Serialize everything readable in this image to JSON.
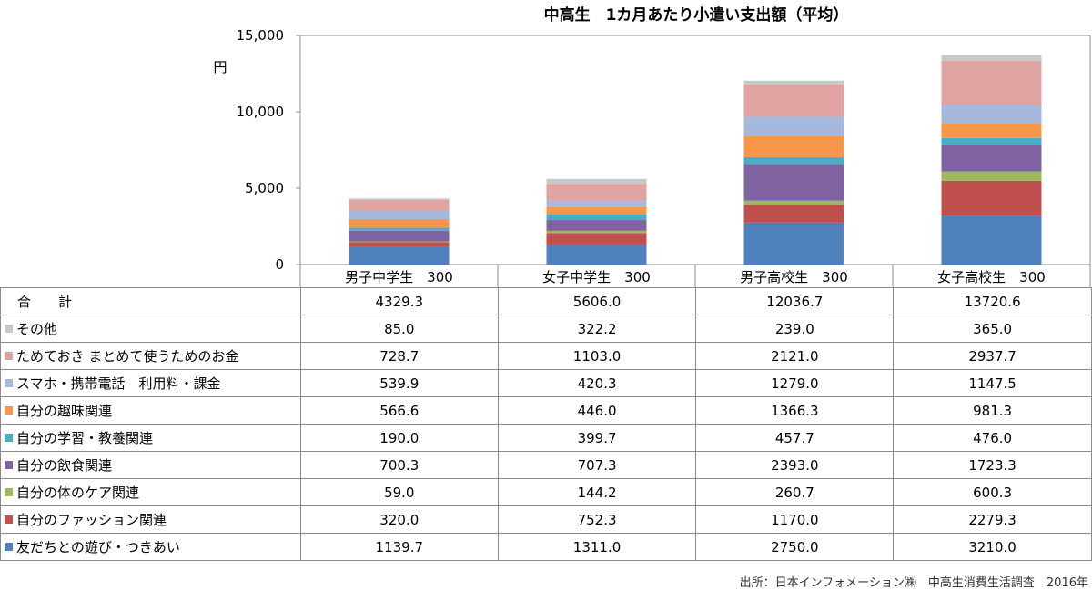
{
  "chart_data": {
    "type": "stacked-bar",
    "title": "中高生　1カ月あたり小遣い支出額（平均）",
    "ylabel": "円",
    "ylim": [
      0,
      15000
    ],
    "yticks": [
      "0",
      "5,000",
      "10,000",
      "15,000"
    ],
    "grid": false,
    "categories": [
      "男子中学生　300",
      "女子中学生　300",
      "男子高校生　300",
      "女子高校生　300"
    ],
    "totals_label": "合　　計",
    "totals": [
      "4329.3",
      "5606.0",
      "12036.7",
      "13720.6"
    ],
    "series": [
      {
        "name": "友だちとの遊び・つきあい",
        "color": "#4f81bd",
        "values": [
          1139.7,
          1311.0,
          2750.0,
          3210.0
        ],
        "display": [
          "1139.7",
          "1311.0",
          "2750.0",
          "3210.0"
        ]
      },
      {
        "name": "自分のファッション関連",
        "color": "#c0504d",
        "values": [
          320.0,
          752.3,
          1170.0,
          2279.3
        ],
        "display": [
          "320.0",
          "752.3",
          "1170.0",
          "2279.3"
        ]
      },
      {
        "name": "自分の体のケア関連",
        "color": "#9bbb59",
        "values": [
          59.0,
          144.2,
          260.7,
          600.3
        ],
        "display": [
          "59.0",
          "144.2",
          "260.7",
          "600.3"
        ]
      },
      {
        "name": "自分の飲食関連",
        "color": "#8064a2",
        "values": [
          700.3,
          707.3,
          2393.0,
          1723.3
        ],
        "display": [
          "700.3",
          "707.3",
          "2393.0",
          "1723.3"
        ]
      },
      {
        "name": "自分の学習・教養関連",
        "color": "#4bacc6",
        "values": [
          190.0,
          399.7,
          457.7,
          476.0
        ],
        "display": [
          "190.0",
          "399.7",
          "457.7",
          "476.0"
        ]
      },
      {
        "name": "自分の趣味関連",
        "color": "#f79646",
        "values": [
          566.6,
          446.0,
          1366.3,
          981.3
        ],
        "display": [
          "566.6",
          "446.0",
          "1366.3",
          "981.3"
        ]
      },
      {
        "name": "スマホ・携帯電話　利用料・課金",
        "color": "#a5b9de",
        "values": [
          539.9,
          420.3,
          1279.0,
          1147.5
        ],
        "display": [
          "539.9",
          "420.3",
          "1279.0",
          "1147.5"
        ]
      },
      {
        "name": "ためておき まとめて使うためのお金",
        "color": "#dfa3a1",
        "values": [
          728.7,
          1103.0,
          2121.0,
          2937.7
        ],
        "display": [
          "728.7",
          "1103.0",
          "2121.0",
          "2937.7"
        ]
      },
      {
        "name": "その他",
        "color": "#c8c8c8",
        "values": [
          85.0,
          322.2,
          239.0,
          365.0
        ],
        "display": [
          "85.0",
          "322.2",
          "239.0",
          "365.0"
        ]
      }
    ]
  },
  "footer": {
    "source": "出所：日本インフォメーション㈱　中高生消費生活調査　2016年"
  }
}
